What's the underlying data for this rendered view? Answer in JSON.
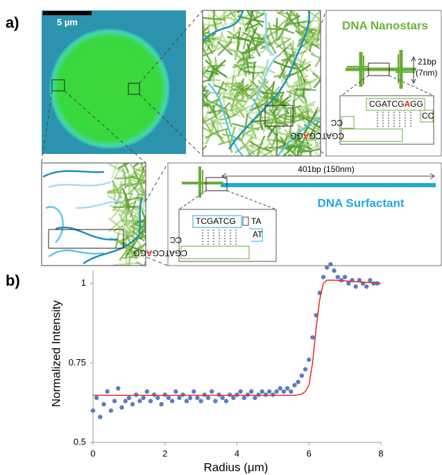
{
  "panel_a": {
    "label": "a)",
    "scale_bar": "5 µm",
    "nanostars": {
      "title": "DNA Nanostars",
      "length": "21bp",
      "length_nm": "(7nm)",
      "top_strand": [
        "CGATCG",
        "A",
        "GG"
      ],
      "top_overhang": "CC",
      "bottom_strand": [
        "CGATCG",
        "A",
        "GG"
      ],
      "bottom_overhang": "CC"
    },
    "surfactant": {
      "title": "DNA Surfactant",
      "length": "401bp (150nm)",
      "top_strand": "TCGATCG",
      "top_overhang": "TA",
      "loop": "AT",
      "bottom_strand": [
        "CGATCG",
        "A",
        "GG"
      ],
      "bottom_overhang": "CC"
    }
  },
  "chart_data": {
    "type": "scatter",
    "label": "b)",
    "x_label": "Radius (μm)",
    "y_label": "Normalized Intensity",
    "xlim": [
      0,
      8
    ],
    "xticks": [
      0,
      2,
      4,
      6,
      8
    ],
    "ylim": [
      0.5,
      1.08
    ],
    "yticks": [
      0.5,
      0.75,
      1
    ],
    "series": [
      {
        "type": "scatter",
        "color": "#5a7dbf",
        "x": [
          0,
          0.1,
          0.2,
          0.3,
          0.4,
          0.5,
          0.6,
          0.7,
          0.8,
          0.9,
          1,
          1.1,
          1.2,
          1.3,
          1.4,
          1.5,
          1.6,
          1.7,
          1.8,
          1.9,
          2,
          2.1,
          2.2,
          2.3,
          2.4,
          2.5,
          2.6,
          2.7,
          2.8,
          2.9,
          3,
          3.1,
          3.2,
          3.3,
          3.4,
          3.5,
          3.6,
          3.7,
          3.8,
          3.9,
          4,
          4.1,
          4.2,
          4.3,
          4.4,
          4.5,
          4.6,
          4.7,
          4.8,
          4.9,
          5,
          5.1,
          5.2,
          5.3,
          5.4,
          5.5,
          5.6,
          5.7,
          5.8,
          5.9,
          6,
          6.1,
          6.2,
          6.3,
          6.4,
          6.5,
          6.6,
          6.7,
          6.8,
          6.9,
          7,
          7.1,
          7.2,
          7.3,
          7.4,
          7.5,
          7.6,
          7.7,
          7.8,
          7.9
        ],
        "values": [
          0.6,
          0.64,
          0.58,
          0.62,
          0.66,
          0.6,
          0.63,
          0.67,
          0.61,
          0.63,
          0.64,
          0.62,
          0.65,
          0.63,
          0.64,
          0.66,
          0.63,
          0.65,
          0.64,
          0.62,
          0.65,
          0.64,
          0.63,
          0.66,
          0.64,
          0.65,
          0.63,
          0.64,
          0.66,
          0.64,
          0.63,
          0.65,
          0.64,
          0.66,
          0.63,
          0.65,
          0.64,
          0.63,
          0.65,
          0.64,
          0.65,
          0.66,
          0.64,
          0.65,
          0.66,
          0.64,
          0.65,
          0.66,
          0.65,
          0.66,
          0.65,
          0.66,
          0.67,
          0.66,
          0.67,
          0.66,
          0.68,
          0.69,
          0.71,
          0.73,
          0.76,
          0.83,
          0.9,
          0.97,
          1.02,
          1.05,
          1.06,
          1.04,
          1.02,
          1.01,
          1.02,
          1.0,
          1.01,
          0.99,
          1.01,
          1.0,
          0.99,
          1.01,
          1.0,
          1.0
        ]
      },
      {
        "type": "line",
        "color": "#e8312a",
        "x": [
          0,
          5.6,
          5.8,
          5.9,
          6.0,
          6.1,
          6.2,
          6.3,
          6.4,
          6.5,
          6.7,
          8
        ],
        "values": [
          0.648,
          0.648,
          0.652,
          0.66,
          0.68,
          0.75,
          0.86,
          0.95,
          1.0,
          1.01,
          1.01,
          1.0
        ]
      }
    ]
  }
}
